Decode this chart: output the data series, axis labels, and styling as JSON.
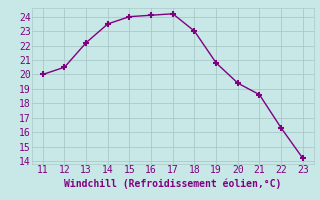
{
  "x": [
    11,
    12,
    13,
    14,
    15,
    16,
    17,
    18,
    19,
    20,
    21,
    22,
    23
  ],
  "y": [
    20.0,
    20.5,
    22.2,
    23.5,
    24.0,
    24.1,
    24.2,
    23.0,
    20.8,
    19.4,
    18.6,
    16.3,
    14.2
  ],
  "xlim": [
    10.5,
    23.5
  ],
  "ylim": [
    13.8,
    24.6
  ],
  "xticks": [
    11,
    12,
    13,
    14,
    15,
    16,
    17,
    18,
    19,
    20,
    21,
    22,
    23
  ],
  "yticks": [
    14,
    15,
    16,
    17,
    18,
    19,
    20,
    21,
    22,
    23,
    24
  ],
  "xlabel": "Windchill (Refroidissement éolien,°C)",
  "line_color": "#800080",
  "marker": "+",
  "bg_color": "#c8e8e8",
  "grid_color": "#aac8c8",
  "tick_color": "#800080",
  "label_color": "#800080",
  "font_family": "monospace",
  "tick_fontsize": 7,
  "xlabel_fontsize": 7
}
